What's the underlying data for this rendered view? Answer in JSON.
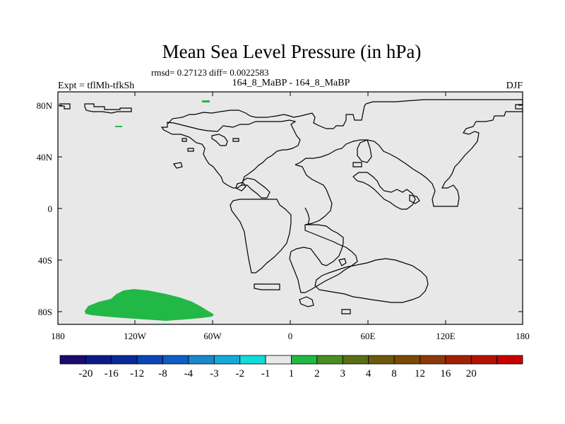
{
  "title": "Mean Sea Level Pressure (in hPa)",
  "stats": "rmsd= 0.27123 diff= 0.0022583",
  "experiment": "Expt = tflMh-tfkSh",
  "comparison": "164_8_MaBP - 164_8_MaBP",
  "season": "DJF",
  "map": {
    "background_color": "#e8e8e8",
    "coast_color": "#000000",
    "anomaly_color": "#22b845",
    "lon_ticks": [
      "180",
      "120W",
      "60W",
      "0",
      "60E",
      "120E",
      "180"
    ],
    "lat_ticks": [
      "80N",
      "40N",
      "0",
      "40S",
      "80S"
    ]
  },
  "colorbar": {
    "colors": [
      "#1c0a6e",
      "#0e1a8a",
      "#0a2a9a",
      "#0b46b4",
      "#0e5ec4",
      "#1a88cc",
      "#16aad8",
      "#10dcdc",
      "#e8e8e8",
      "#22b845",
      "#4a8e22",
      "#5a6e16",
      "#6a5a0e",
      "#7a4a08",
      "#8a3a08",
      "#a02206",
      "#b41204",
      "#c80000"
    ],
    "labels": [
      "-20",
      "-16",
      "-12",
      "-8",
      "-4",
      "-3",
      "-2",
      "-1",
      "1",
      "2",
      "3",
      "4",
      "8",
      "12",
      "16",
      "20"
    ]
  }
}
